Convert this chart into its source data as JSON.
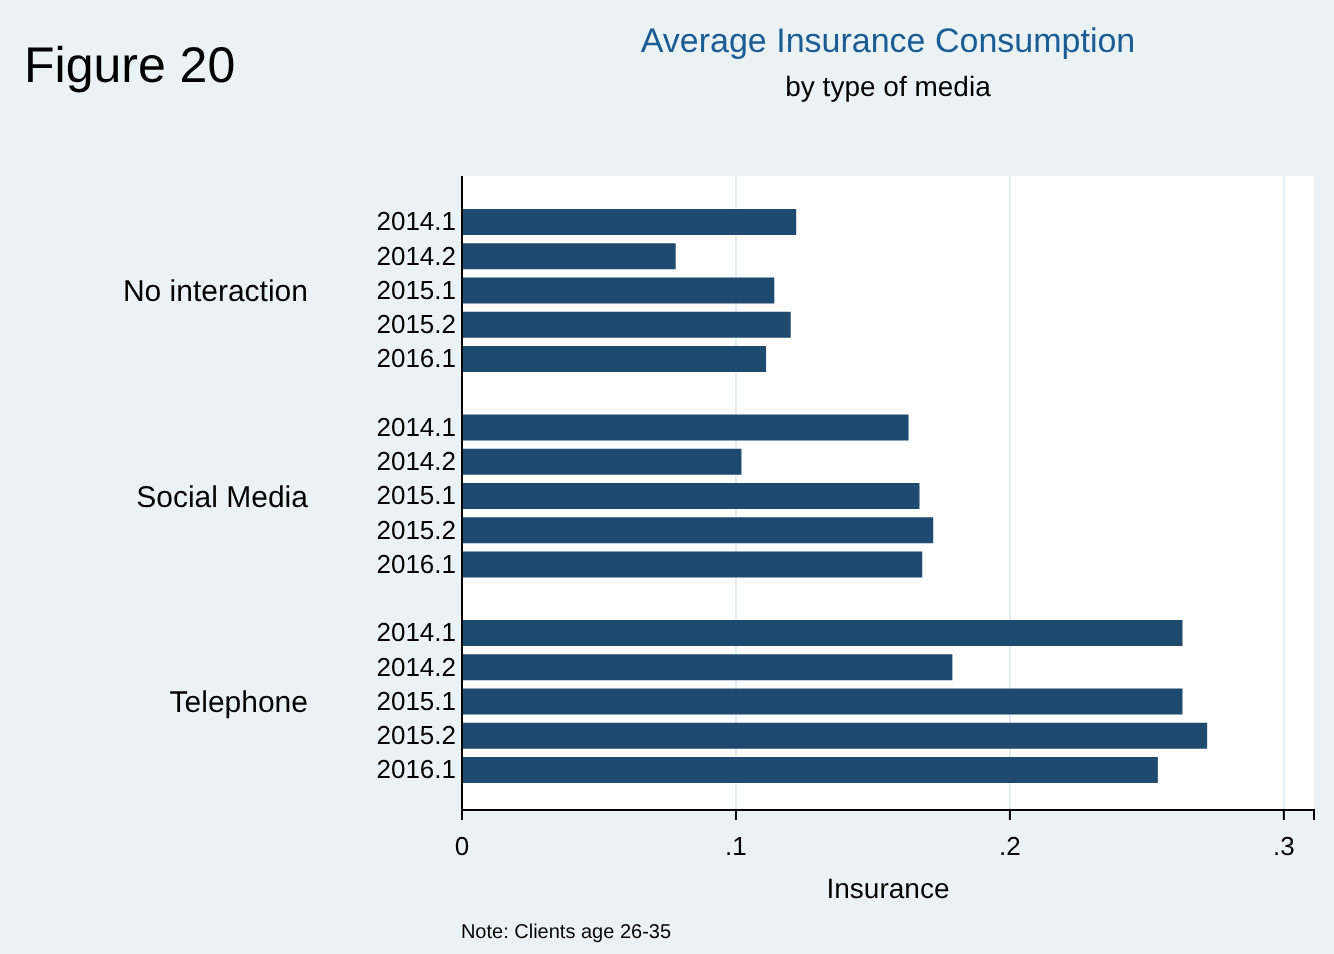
{
  "chart_data": {
    "type": "bar",
    "orientation": "horizontal",
    "title": "Average Insurance Consumption",
    "subtitle": "by type of media",
    "xlabel": "Insurance",
    "categories": [
      "2014.1",
      "2014.2",
      "2015.1",
      "2015.2",
      "2016.1",
      null,
      "2014.1",
      "2014.2",
      "2015.1",
      "2015.2",
      "2016.1",
      null,
      "2014.1",
      "2014.2",
      "2015.1",
      "2015.2",
      "2016.1"
    ],
    "values": [
      0.122,
      0.078,
      0.114,
      0.12,
      0.111,
      null,
      0.163,
      0.102,
      0.167,
      0.172,
      0.168,
      null,
      0.263,
      0.179,
      0.263,
      0.272,
      0.254
    ],
    "color": "#1f4a70",
    "xlim": [
      0,
      0.311
    ],
    "xticks": [
      0,
      {
        "value": 0.1,
        "label": ".1"
      },
      {
        "value": 0.2,
        "label": ".2"
      },
      {
        "value": 0.3,
        "label": ".3"
      }
    ],
    "grid": "x",
    "annotations": [
      "Figure 20",
      "No interaction",
      "Social Media",
      "Telephone",
      "Note: Clients age 26-35"
    ]
  }
}
